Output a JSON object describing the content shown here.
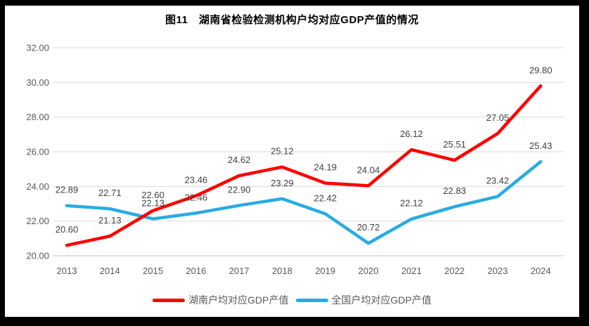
{
  "chart_data": {
    "type": "line",
    "title": "图11　湖南省检验检测机构户均对应GDP产值的情况",
    "categories": [
      "2013",
      "2014",
      "2015",
      "2016",
      "2017",
      "2018",
      "2019",
      "2020",
      "2021",
      "2022",
      "2023",
      "2024"
    ],
    "series": [
      {
        "name": "湖南户均对应GDP产值",
        "color": "#FE0000",
        "values": [
          20.6,
          21.13,
          22.6,
          23.46,
          24.62,
          25.12,
          24.19,
          24.04,
          26.12,
          25.51,
          27.05,
          29.8
        ]
      },
      {
        "name": "全国户均对应GDP产值",
        "color": "#29ABE2",
        "values": [
          22.89,
          22.71,
          22.13,
          22.46,
          22.9,
          23.29,
          22.42,
          20.72,
          22.12,
          22.83,
          23.42,
          25.43
        ]
      }
    ],
    "ylim": [
      20,
      32
    ],
    "ytick_step": 2,
    "ytick_decimals": 2,
    "data_label_decimals": 2,
    "grid": true,
    "legend_position": "bottom"
  },
  "colors": {
    "grid": "#D9D9D9",
    "axis_line": "#C6C6C6",
    "tick_text": "#595959",
    "data_label_text": "#404040",
    "title_text": "#000000",
    "frame": "#000000",
    "background": "#FFFFFF"
  }
}
